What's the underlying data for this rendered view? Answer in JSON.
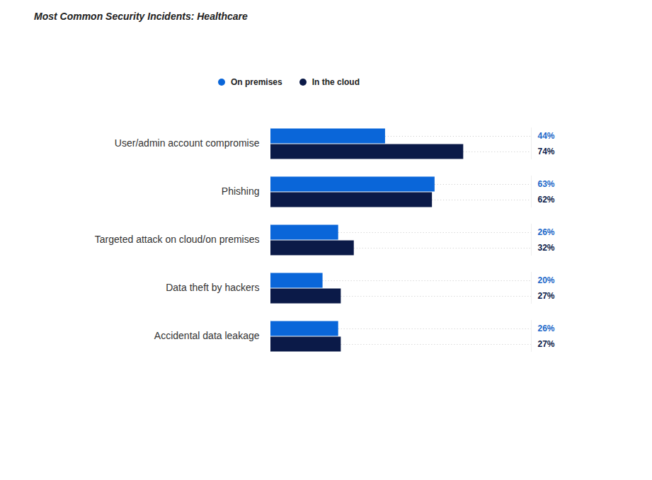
{
  "chart_data": {
    "type": "bar",
    "title": "Most Common Security Incidents: Healthcare",
    "orientation": "horizontal",
    "categories": [
      "User/admin account compromise",
      "Phishing",
      "Targeted attack on cloud/on premises",
      "Data theft by hackers",
      "Accidental data leakage"
    ],
    "series": [
      {
        "name": "On premises",
        "color": "#0a66d9",
        "values": [
          44,
          63,
          26,
          20,
          26
        ],
        "value_labels": [
          "44%",
          "63%",
          "26%",
          "20%",
          "26%"
        ]
      },
      {
        "name": "In the cloud",
        "color": "#0b1a48",
        "values": [
          74,
          62,
          32,
          27,
          27
        ],
        "value_labels": [
          "74%",
          "62%",
          "32%",
          "27%",
          "27%"
        ]
      }
    ],
    "xlim": [
      0,
      100
    ],
    "xticks": [],
    "grid": false,
    "legend": "top",
    "data_labels": true,
    "tick_labels": "y"
  }
}
